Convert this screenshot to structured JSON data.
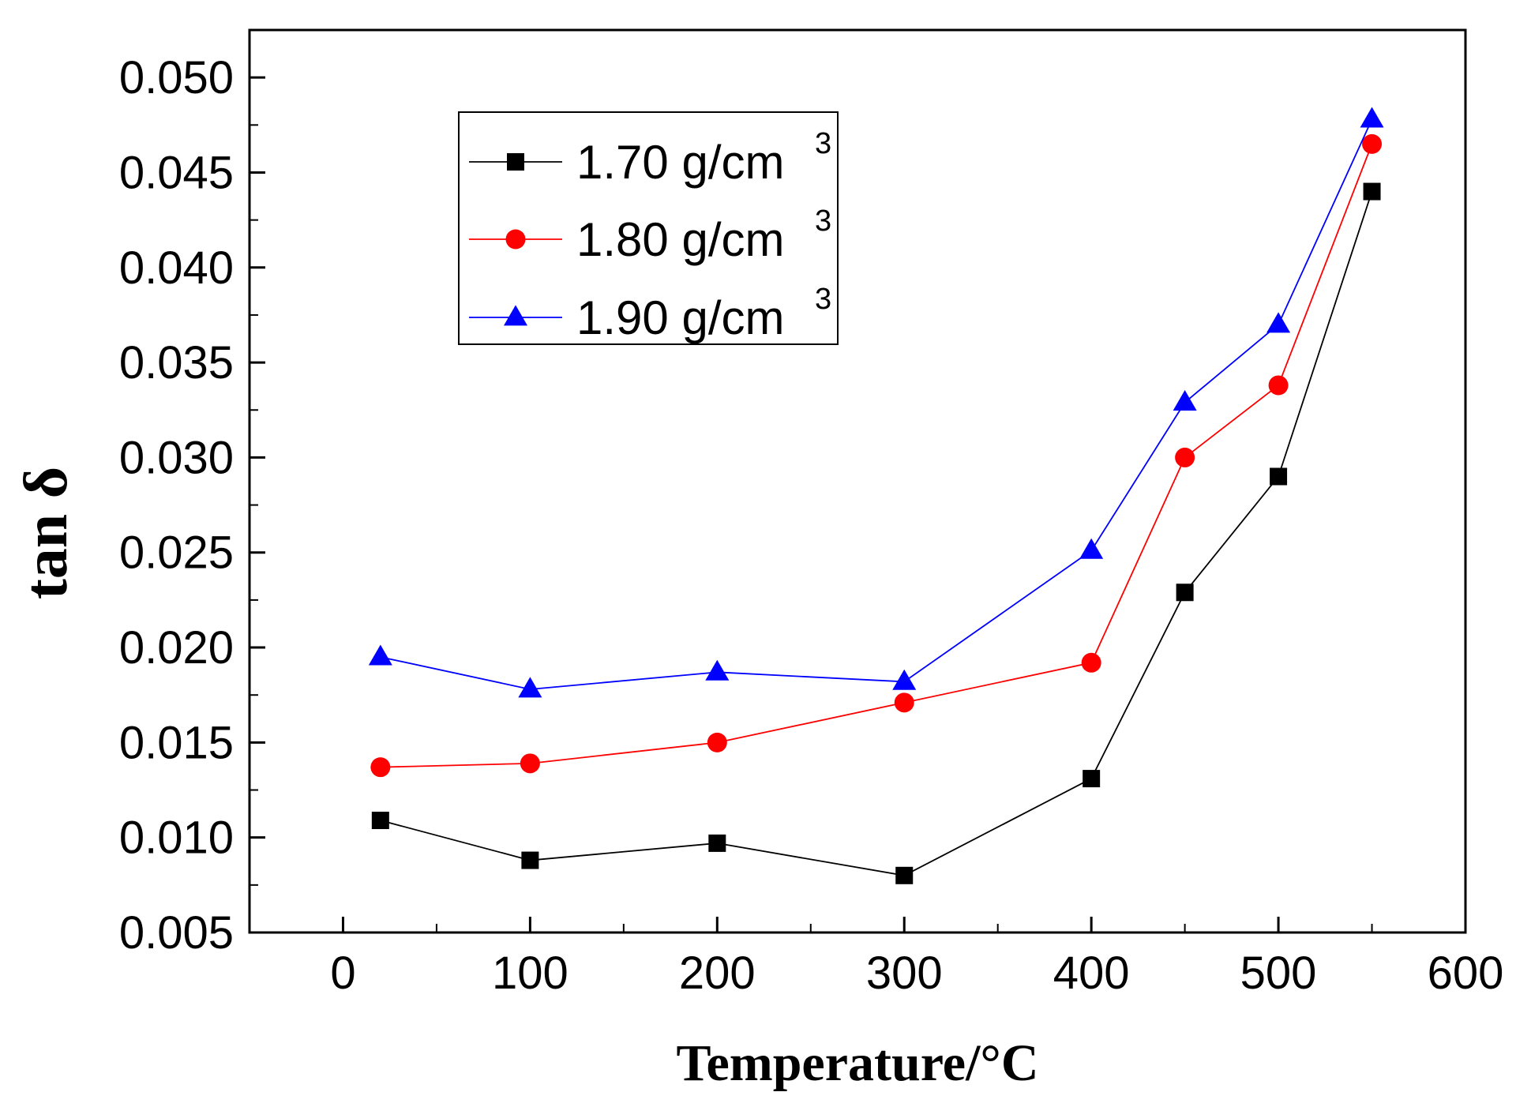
{
  "chart_data": {
    "type": "line",
    "title": "",
    "xlabel": "Temperature/°C",
    "ylabel": "tan δ",
    "xlim": [
      -50,
      600
    ],
    "ylim": [
      0.005,
      0.0525
    ],
    "xticks": [
      0,
      100,
      200,
      300,
      400,
      500,
      600
    ],
    "xtick_labels": [
      "0",
      "100",
      "200",
      "300",
      "400",
      "500",
      "600"
    ],
    "yticks": [
      0.005,
      0.01,
      0.015,
      0.02,
      0.025,
      0.03,
      0.035,
      0.04,
      0.045,
      0.05
    ],
    "ytick_labels": [
      "0.005",
      "0.010",
      "0.015",
      "0.020",
      "0.025",
      "0.030",
      "0.035",
      "0.040",
      "0.045",
      "0.050"
    ],
    "legend_position": "top-left",
    "series": [
      {
        "name": "1.70 g/cm3",
        "label_main": "1.70 g/cm",
        "label_sup": "3",
        "color": "#000000",
        "marker": "square",
        "x": [
          20,
          100,
          200,
          300,
          400,
          450,
          500,
          550
        ],
        "values": [
          0.0109,
          0.0088,
          0.0097,
          0.008,
          0.0131,
          0.0229,
          0.029,
          0.044
        ]
      },
      {
        "name": "1.80 g/cm3",
        "label_main": "1.80 g/cm",
        "label_sup": "3",
        "color": "#ff0000",
        "marker": "circle",
        "x": [
          20,
          100,
          200,
          300,
          400,
          450,
          500,
          550
        ],
        "values": [
          0.0137,
          0.0139,
          0.015,
          0.0171,
          0.0192,
          0.03,
          0.0338,
          0.0465
        ]
      },
      {
        "name": "1.90 g/cm3",
        "label_main": "1.90 g/cm",
        "label_sup": "3",
        "color": "#0000ff",
        "marker": "triangle",
        "x": [
          20,
          100,
          200,
          300,
          400,
          450,
          500,
          550
        ],
        "values": [
          0.0195,
          0.0178,
          0.0187,
          0.0182,
          0.0251,
          0.0329,
          0.037,
          0.0478
        ]
      }
    ]
  }
}
